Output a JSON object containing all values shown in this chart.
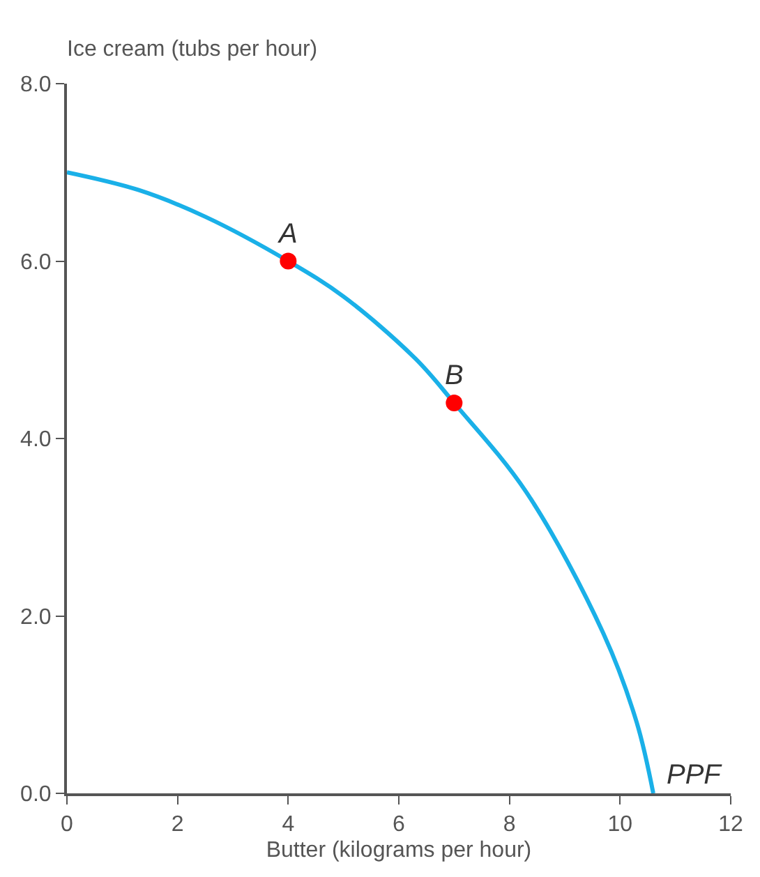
{
  "chart_data": {
    "type": "line",
    "ylabel": "Ice cream (tubs per hour)",
    "xlabel": "Butter (kilograms per hour)",
    "xlim": [
      0,
      12
    ],
    "xticks": [
      0,
      2,
      4,
      6,
      8,
      10,
      12
    ],
    "ylim": [
      0,
      8
    ],
    "yticks": [
      {
        "value": 0,
        "label": "0.0"
      },
      {
        "value": 2,
        "label": "2.0"
      },
      {
        "value": 4,
        "label": "4.0"
      },
      {
        "value": 6,
        "label": "6.0"
      },
      {
        "value": 8,
        "label": "8.0"
      }
    ],
    "legend": false,
    "series": [
      {
        "name": "PPF",
        "color": "#1ab0e8",
        "marker": "none",
        "x": [
          0,
          1.3,
          2.5,
          4,
          5,
          6.3,
          7,
          8.3,
          9.7,
          10.3,
          10.6
        ],
        "values": [
          7,
          6.8,
          6.5,
          6,
          5.6,
          4.9,
          4.4,
          3.4,
          1.8,
          0.8,
          0
        ]
      },
      {
        "type": "scatter",
        "color": "#ff0000",
        "marker": "circle",
        "x": [
          4,
          7
        ],
        "values": [
          6,
          4.4
        ],
        "value_labels": [
          "A",
          "B"
        ]
      }
    ]
  }
}
